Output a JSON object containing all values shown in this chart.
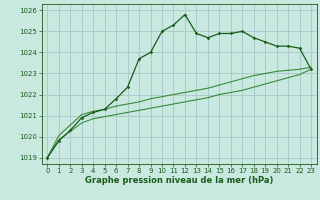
{
  "title": "Graphe pression niveau de la mer (hPa)",
  "bg_color": "#c8e8e0",
  "grid_color": "#aacccc",
  "line_color_main": "#1a5c1a",
  "line_color_light": "#3a8a3a",
  "xlim": [
    -0.5,
    23.5
  ],
  "ylim": [
    1018.7,
    1026.3
  ],
  "yticks": [
    1019,
    1020,
    1021,
    1022,
    1023,
    1024,
    1025,
    1026
  ],
  "xticks": [
    0,
    1,
    2,
    3,
    4,
    5,
    6,
    7,
    8,
    9,
    10,
    11,
    12,
    13,
    14,
    15,
    16,
    17,
    18,
    19,
    20,
    21,
    22,
    23
  ],
  "series1": [
    1019.0,
    1019.8,
    1020.3,
    1020.9,
    1021.15,
    1021.3,
    1021.8,
    1022.35,
    1023.7,
    1024.0,
    1025.0,
    1025.3,
    1025.8,
    1024.9,
    1024.7,
    1024.9,
    1024.9,
    1025.0,
    1024.7,
    1024.5,
    1024.3,
    1024.3,
    1024.2,
    1023.2
  ],
  "series2": [
    1019.0,
    1020.05,
    1020.55,
    1021.05,
    1021.2,
    1021.3,
    1021.45,
    1021.55,
    1021.65,
    1021.8,
    1021.9,
    1022.0,
    1022.1,
    1022.2,
    1022.3,
    1022.45,
    1022.6,
    1022.75,
    1022.9,
    1023.0,
    1023.1,
    1023.15,
    1023.2,
    1023.3
  ],
  "series3": [
    1019.0,
    1019.85,
    1020.25,
    1020.65,
    1020.85,
    1020.95,
    1021.05,
    1021.15,
    1021.25,
    1021.35,
    1021.45,
    1021.55,
    1021.65,
    1021.75,
    1021.85,
    1022.0,
    1022.1,
    1022.2,
    1022.35,
    1022.5,
    1022.65,
    1022.8,
    1022.95,
    1023.2
  ]
}
